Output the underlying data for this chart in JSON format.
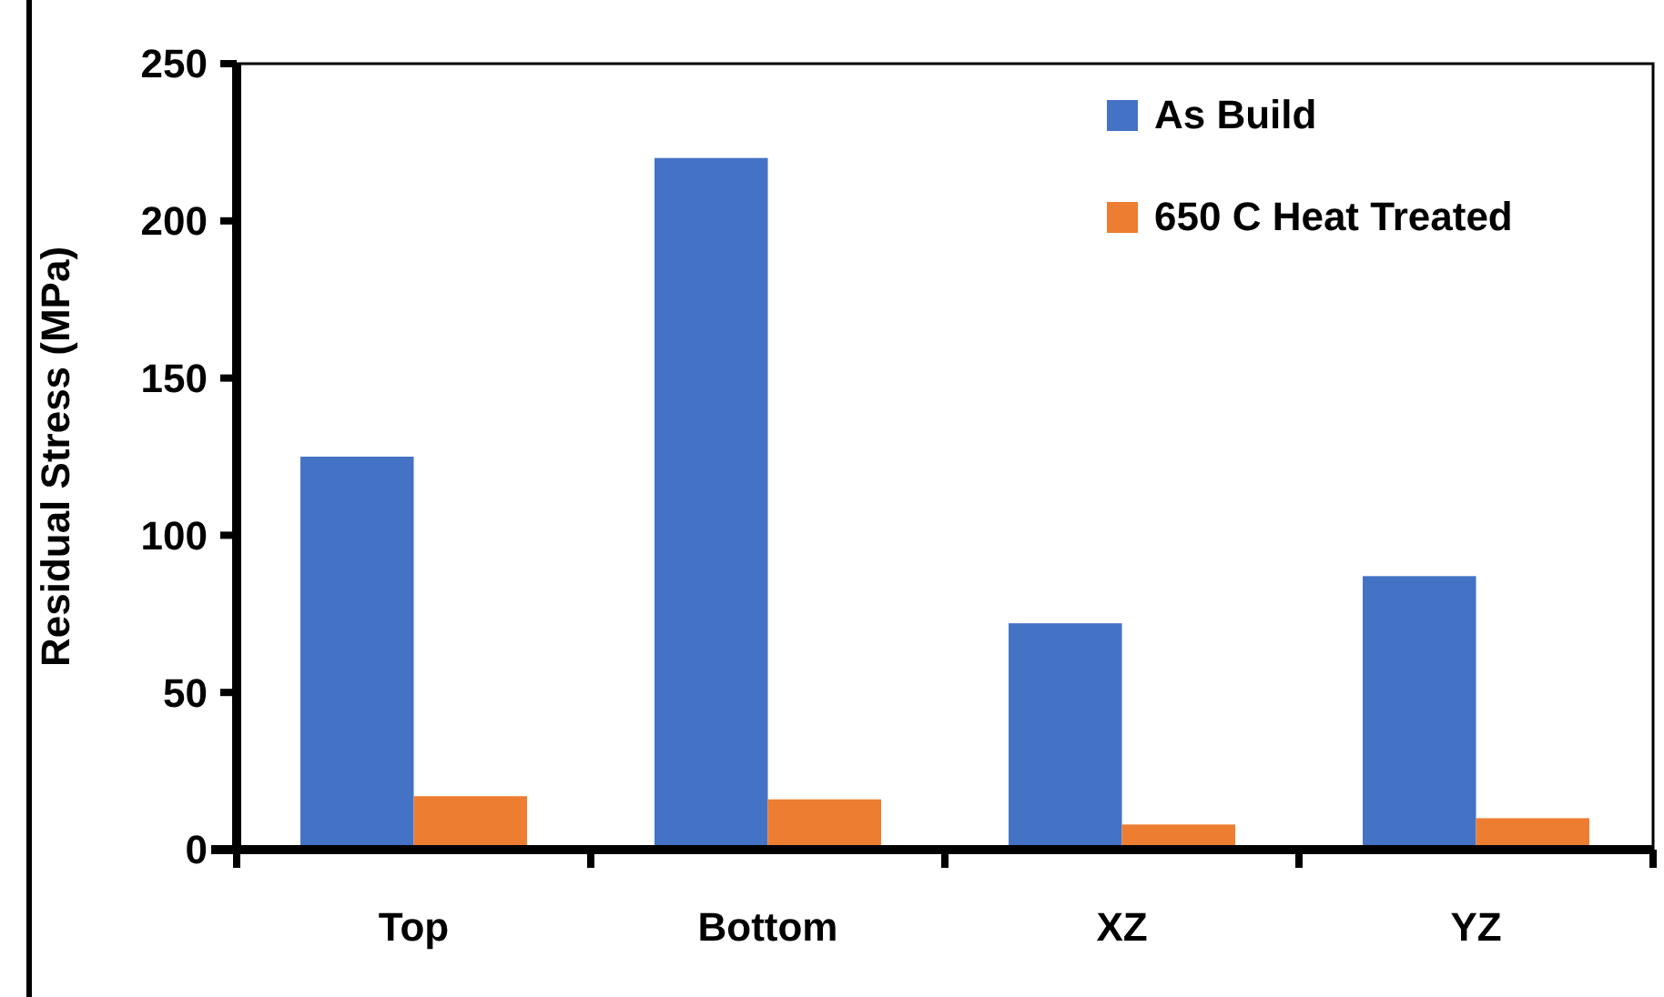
{
  "chart_data": {
    "type": "bar",
    "ylabel": "Residual Stress (MPa)",
    "categories": [
      "Top",
      "Bottom",
      "XZ",
      "YZ"
    ],
    "series": [
      {
        "name": "As Build",
        "color": "#4472c4",
        "values": [
          125,
          220,
          72,
          87
        ]
      },
      {
        "name": "650 C Heat Treated",
        "color": "#ed7d31",
        "values": [
          17,
          16,
          8,
          10
        ]
      }
    ],
    "ylim": [
      0,
      250
    ],
    "yticks": [
      0,
      50,
      100,
      150,
      200,
      250
    ],
    "grid": false,
    "legend": "top right"
  }
}
